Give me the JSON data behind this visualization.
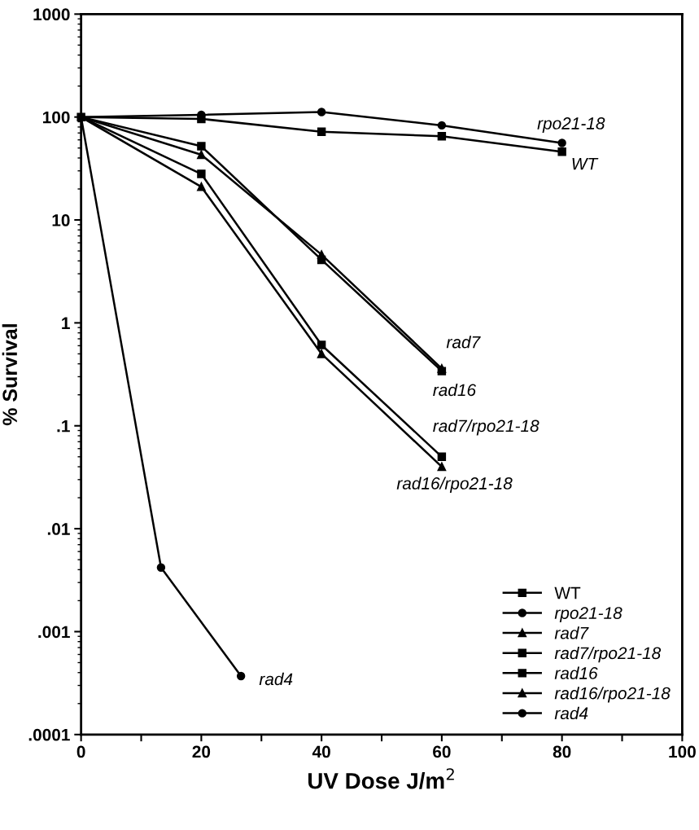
{
  "chart_data": {
    "type": "line",
    "xlabel": "UV Dose J/m$^{2}$",
    "ylabel": "% Survival",
    "log": "y",
    "xlim": [
      0,
      100
    ],
    "xticks": [
      0,
      {
        "value": 10,
        "label": null
      },
      20,
      {
        "value": 30,
        "label": null
      },
      40,
      {
        "value": 50,
        "label": null
      },
      60,
      {
        "value": 70,
        "label": null
      },
      80,
      {
        "value": 90,
        "label": null
      },
      100
    ],
    "ylim": [
      0.0001,
      1000
    ],
    "yticks": [
      {
        "value": 0.0001,
        "label": ".0001"
      },
      {
        "value": 0.001,
        "label": ".001"
      },
      {
        "value": 0.01,
        "label": ".01"
      },
      {
        "value": 0.1,
        "label": ".1"
      },
      1,
      10,
      100,
      1000
    ],
    "grid": false,
    "legend": "bottom right",
    "line_style": "solid",
    "series": [
      {
        "name": "WT",
        "color": "#000000",
        "marker": "square",
        "x": [
          0,
          20,
          40,
          60,
          80
        ],
        "values": [
          100,
          96,
          72,
          65,
          46
        ]
      },
      {
        "name": "rpo21-18",
        "color": "#000000",
        "marker": "circle",
        "x": [
          0,
          20,
          40,
          60,
          80
        ],
        "values": [
          100,
          105,
          112,
          83,
          56
        ]
      },
      {
        "name": "rad7",
        "color": "#000000",
        "marker": "triangle",
        "x": [
          0,
          20,
          40,
          60
        ],
        "values": [
          100,
          43,
          4.6,
          0.36
        ]
      },
      {
        "name": "rad7/rpo21-18",
        "color": "#000000",
        "marker": "square",
        "x": [
          0,
          20,
          40,
          60
        ],
        "values": [
          100,
          28,
          0.61,
          0.05
        ]
      },
      {
        "name": "rad16",
        "color": "#000000",
        "marker": "square",
        "x": [
          0,
          20,
          40,
          60
        ],
        "values": [
          100,
          52,
          4.1,
          0.34
        ]
      },
      {
        "name": "rad16/rpo21-18",
        "color": "#000000",
        "marker": "triangle",
        "x": [
          0,
          20,
          40,
          60
        ],
        "values": [
          100,
          21,
          0.5,
          0.04
        ]
      },
      {
        "name": "rad4",
        "color": "#000000",
        "marker": "circle",
        "x": [
          0,
          13.3,
          26.6
        ],
        "values": [
          100,
          0.0042,
          0.00037
        ]
      }
    ],
    "annotations": [
      {
        "text": "rpo21-18",
        "x": 80,
        "y": 56
      },
      {
        "text": "WT",
        "x": 80,
        "y": 46
      },
      {
        "text": "rad7",
        "x": 60,
        "y": 0.36
      },
      {
        "text": "rad16",
        "x": 60,
        "y": 0.34
      },
      {
        "text": "rad7/rpo21-18",
        "x": 60,
        "y": 0.05
      },
      {
        "text": "rad16/rpo21-18",
        "x": 60,
        "y": 0.04
      },
      {
        "text": "rad4",
        "x": 26.6,
        "y": 0.00037
      }
    ]
  }
}
